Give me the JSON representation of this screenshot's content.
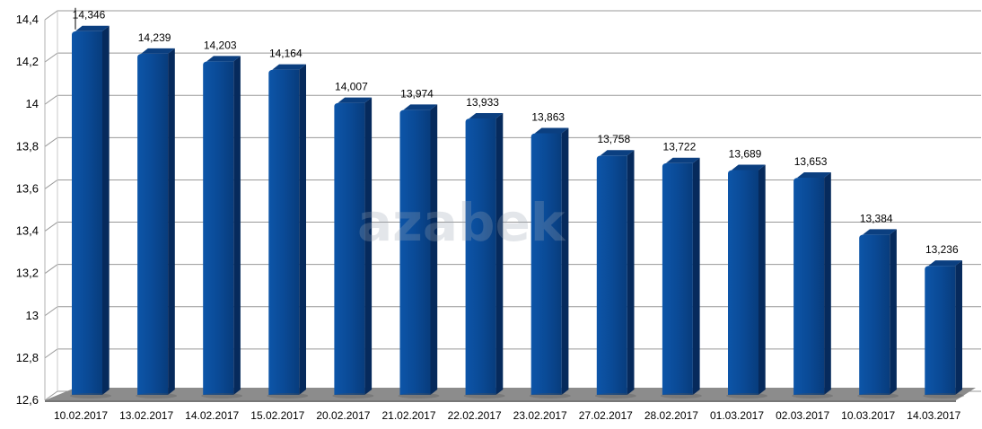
{
  "chart_data": {
    "type": "bar",
    "title": "",
    "xlabel": "",
    "ylabel": "",
    "categories": [
      "10.02.2017",
      "13.02.2017",
      "14.02.2017",
      "15.02.2017",
      "20.02.2017",
      "21.02.2017",
      "22.02.2017",
      "23.02.2017",
      "27.02.2017",
      "28.02.2017",
      "01.03.2017",
      "02.03.2017",
      "10.03.2017",
      "14.03.2017"
    ],
    "values": [
      14.346,
      14.239,
      14.203,
      14.164,
      14.007,
      13.974,
      13.933,
      13.863,
      13.758,
      13.722,
      13.689,
      13.653,
      13.384,
      13.236
    ],
    "value_labels": [
      "14,346",
      "14,239",
      "14,203",
      "14,164",
      "14,007",
      "13,974",
      "13,933",
      "13,863",
      "13,758",
      "13,722",
      "13,689",
      "13,653",
      "13,384",
      "13,236"
    ],
    "ylim": [
      12.6,
      14.4
    ],
    "yticks": [
      12.6,
      12.8,
      13,
      13.2,
      13.4,
      13.6,
      13.8,
      14,
      14.2,
      14.4
    ],
    "ytick_labels": [
      "12,6",
      "12,8",
      "13",
      "13,2",
      "13,4",
      "13,6",
      "13,8",
      "14",
      "14,2",
      "14,4"
    ],
    "grid": true,
    "style": "3d-column",
    "bar_color": "#0a4a96",
    "bar_color_dark": "#062a5c",
    "floor_color": "#8c8c8c",
    "gridline_color": "#999999",
    "watermark": "azabek"
  }
}
